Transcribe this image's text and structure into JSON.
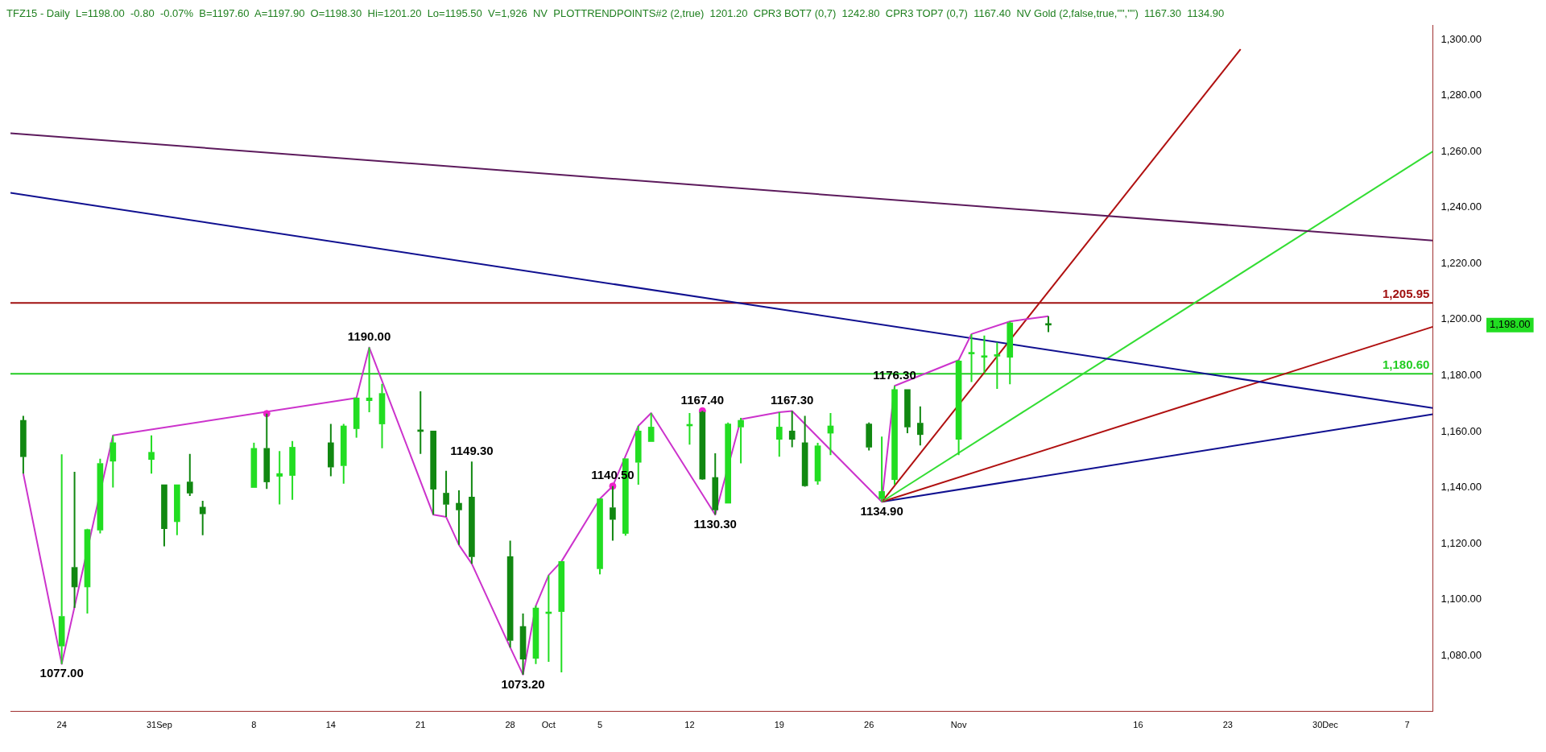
{
  "chart_data": {
    "type": "candlestick",
    "title": "TFZ15 - Daily  L=1198.00  -0.80  -0.07%  B=1197.60  A=1197.90  O=1198.30  Hi=1201.20  Lo=1195.50  V=1,926  NV  PLOTTRENDPOINTS#2 (2,true)  1201.20  CPR3 BOT7 (0,7)  1242.80  CPR3 TOP7 (0,7)  1167.40  NV Gold (2,false,true,\"\",\"\")  1167.30  1134.90",
    "xlim": [
      "--08-20",
      "--12-09"
    ],
    "xticks": [
      {
        "value": "--08-24",
        "label": "24"
      },
      {
        "value": "--08-31",
        "label": "31"
      },
      {
        "value": "--09-01",
        "label": "Sep"
      },
      {
        "value": "--09-08",
        "label": "8"
      },
      {
        "value": "--09-14",
        "label": "14"
      },
      {
        "value": "--09-21",
        "label": "21"
      },
      {
        "value": "--09-28",
        "label": "28"
      },
      {
        "value": "--10-01",
        "label": "Oct"
      },
      {
        "value": "--10-05",
        "label": "5"
      },
      {
        "value": "--10-12",
        "label": "12"
      },
      {
        "value": "--10-19",
        "label": "19"
      },
      {
        "value": "--10-26",
        "label": "26"
      },
      {
        "value": "--11-02",
        "label": "Nov"
      },
      {
        "value": "--11-16",
        "label": "16"
      },
      {
        "value": "--11-23",
        "label": "23"
      },
      {
        "value": "--11-30",
        "label": "30"
      },
      {
        "value": "--12-01",
        "label": "Dec"
      },
      {
        "value": "--12-07",
        "label": "7"
      }
    ],
    "ylim": [
      1060,
      1305
    ],
    "yticks": [
      {
        "value": 1080,
        "label": "1,080.00"
      },
      {
        "value": 1100,
        "label": "1,100.00"
      },
      {
        "value": 1120,
        "label": "1,120.00"
      },
      {
        "value": 1140,
        "label": "1,140.00"
      },
      {
        "value": 1160,
        "label": "1,160.00"
      },
      {
        "value": 1180,
        "label": "1,180.00"
      },
      {
        "value": 1200,
        "label": "1,200.00"
      },
      {
        "value": 1220,
        "label": "1,220.00"
      },
      {
        "value": 1240,
        "label": "1,240.00"
      },
      {
        "value": 1260,
        "label": "1,260.00"
      },
      {
        "value": 1280,
        "label": "1,280.00"
      },
      {
        "value": 1300,
        "label": "1,300.00"
      }
    ],
    "series": [
      {
        "color": "#22dd22",
        "colors": [
          "#118811",
          "#22dd22",
          "#118811",
          "#22dd22",
          "#22dd22",
          "#22dd22",
          "#22dd22",
          "#118811",
          "#22dd22",
          "#118811",
          "#118811",
          "#22dd22",
          "#118811",
          "#22dd22",
          "#22dd22",
          "#118811",
          "#22dd22",
          "#22dd22",
          "#22dd22",
          "#22dd22",
          "#118811",
          "#118811",
          "#118811",
          "#118811",
          "#118811",
          "#118811",
          "#118811",
          "#22dd22",
          "#22dd22",
          "#22dd22",
          "#22dd22",
          "#118811",
          "#22dd22",
          "#22dd22",
          "#22dd22",
          "#22dd22",
          "#118811",
          "#118811",
          "#22dd22",
          "#22dd22",
          "#22dd22",
          "#118811",
          "#118811",
          "#22dd22",
          "#22dd22",
          "#118811",
          "#22dd22",
          "#22dd22",
          "#118811",
          "#118811",
          "#22dd22",
          "#22dd22",
          "#22dd22",
          "#22dd22",
          "#22dd22",
          "#118811"
        ],
        "x": [
          "--08-21",
          "--08-24",
          "--08-25",
          "--08-26",
          "--08-27",
          "--08-28",
          "--08-31",
          "--09-01",
          "--09-02",
          "--09-03",
          "--09-04",
          "--09-08",
          "--09-09",
          "--09-10",
          "--09-11",
          "--09-14",
          "--09-15",
          "--09-16",
          "--09-17",
          "--09-18",
          "--09-21",
          "--09-22",
          "--09-23",
          "--09-24",
          "--09-25",
          "--09-28",
          "--09-29",
          "--09-30",
          "--10-01",
          "--10-02",
          "--10-05",
          "--10-06",
          "--10-07",
          "--10-08",
          "--10-09",
          "--10-12",
          "--10-13",
          "--10-14",
          "--10-15",
          "--10-16",
          "--10-19",
          "--10-20",
          "--10-21",
          "--10-22",
          "--10-23",
          "--10-26",
          "--10-27",
          "--10-28",
          "--10-29",
          "--10-30",
          "--11-02",
          "--11-03",
          "--11-04",
          "--11-05",
          "--11-06",
          "--11-09"
        ],
        "ohlc": [
          [
            1164,
            1165.6,
            1145,
            1151
          ],
          [
            1083.4,
            1151.9,
            1077,
            1094
          ],
          [
            1111.5,
            1145.6,
            1097,
            1104.5
          ],
          [
            1104.5,
            1125.3,
            1095,
            1125
          ],
          [
            1124.8,
            1150.3,
            1123.6,
            1148.6
          ],
          [
            1149.4,
            1158.6,
            1140,
            1156
          ],
          [
            1150,
            1158.6,
            1145,
            1152.6
          ],
          [
            1141,
            1141,
            1119,
            1125.3
          ],
          [
            1127.8,
            1141,
            1123,
            1141
          ],
          [
            1142,
            1152,
            1137,
            1138
          ],
          [
            1133,
            1135.3,
            1123,
            1130.6
          ],
          [
            1140,
            1156,
            1140,
            1154
          ],
          [
            1154,
            1166.4,
            1139.5,
            1142
          ],
          [
            1144,
            1153,
            1134,
            1145
          ],
          [
            1144.3,
            1156.6,
            1135.6,
            1154.4
          ],
          [
            1156,
            1162.7,
            1144,
            1147.3
          ],
          [
            1147.8,
            1162.7,
            1141.4,
            1162
          ],
          [
            1161,
            1172,
            1157.8,
            1172
          ],
          [
            1171,
            1190,
            1166.9,
            1172
          ],
          [
            1162.7,
            1177,
            1154,
            1173.6
          ],
          [
            1160.6,
            1174.4,
            1152,
            1160
          ],
          [
            1160.2,
            1160.2,
            1130.3,
            1139.4
          ],
          [
            1138,
            1146,
            1129.5,
            1134
          ],
          [
            1134.4,
            1139,
            1119.5,
            1132
          ],
          [
            1136.6,
            1149.3,
            1112.8,
            1115.3
          ],
          [
            1115.3,
            1121,
            1082.9,
            1085.4
          ],
          [
            1090.4,
            1095,
            1073.2,
            1078.7
          ],
          [
            1079,
            1097.8,
            1077,
            1097
          ],
          [
            1095,
            1108.7,
            1077.8,
            1095.3
          ],
          [
            1095.7,
            1113.6,
            1074,
            1113.6
          ],
          [
            1111,
            1136,
            1109,
            1136
          ],
          [
            1132.8,
            1140.5,
            1121,
            1128.6
          ],
          [
            1123.6,
            1150.3,
            1122.8,
            1150.3
          ],
          [
            1149,
            1162,
            1141,
            1160.2
          ],
          [
            1156.4,
            1166.6,
            1156.4,
            1161.6
          ],
          [
            1162,
            1166.6,
            1155.3,
            1162
          ],
          [
            1166.9,
            1167.4,
            1142.8,
            1143
          ],
          [
            1143.6,
            1152.2,
            1130.3,
            1132
          ],
          [
            1134.4,
            1163.2,
            1134.4,
            1162.7
          ],
          [
            1161.6,
            1164.9,
            1148.6,
            1164
          ],
          [
            1157.2,
            1166.9,
            1151,
            1161.6
          ],
          [
            1160.2,
            1167.3,
            1154.4,
            1157.2
          ],
          [
            1156,
            1165.6,
            1140.3,
            1140.6
          ],
          [
            1142.3,
            1156,
            1141,
            1154.9
          ],
          [
            1159.4,
            1166.6,
            1151.6,
            1162
          ],
          [
            1162.7,
            1163.2,
            1153.2,
            1154.4
          ],
          [
            1136,
            1158.2,
            1134.9,
            1138.6
          ],
          [
            1142.8,
            1176.3,
            1141,
            1175
          ],
          [
            1175,
            1175,
            1159.4,
            1161.6
          ],
          [
            1163,
            1169,
            1155,
            1158.9
          ],
          [
            1157.2,
            1185.5,
            1151.6,
            1185.2
          ],
          [
            1187.7,
            1194.8,
            1177.7,
            1188
          ],
          [
            1186.5,
            1194.3,
            1181,
            1186.5
          ],
          [
            1186.9,
            1191.8,
            1175.2,
            1187.2
          ],
          [
            1186.5,
            1199.3,
            1176.9,
            1198.8
          ],
          [
            1198.3,
            1201.2,
            1195.5,
            1198
          ]
        ]
      },
      {
        "type": "line",
        "color": "#cc33cc",
        "x": [
          "--08-21",
          "--08-24",
          "--08-28",
          "--09-16",
          "--09-17",
          "--09-22",
          "--09-23",
          "--09-24",
          "--09-25",
          "--09-28",
          "--09-29",
          "--09-30",
          "--10-01",
          "--10-02",
          "--10-05",
          "--10-06",
          "--10-08",
          "--10-09",
          "--10-14",
          "--10-16",
          "--10-19",
          "--10-20",
          "--10-27",
          "--10-28",
          "--11-02",
          "--11-03",
          "--11-06",
          "--11-09"
        ],
        "values": [
          1145,
          1077,
          1158.6,
          1172,
          1190,
          1130.3,
          1129.5,
          1119.5,
          1112.8,
          1082.9,
          1073.2,
          1097.8,
          1108.7,
          1113.6,
          1136,
          1140.5,
          1162,
          1166.6,
          1130.3,
          1164.4,
          1166.9,
          1167.3,
          1134.9,
          1176.3,
          1185.5,
          1194.8,
          1199.3,
          1201.2
        ]
      },
      {
        "type": "scatter",
        "color": "#ee22cc",
        "marker": "circle",
        "x": [
          "--09-09",
          "--10-06",
          "--10-13"
        ],
        "values": [
          1166.4,
          1140.5,
          1167.4
        ]
      },
      {
        "type": "line",
        "color": "#5c1a5c",
        "x": [
          "--08-20",
          "--12-09"
        ],
        "values": [
          1266.5,
          1228.2
        ]
      },
      {
        "type": "line",
        "color": "#101090",
        "x": [
          "--08-20",
          "--12-09"
        ],
        "values": [
          1245.2,
          1168.4
        ]
      },
      {
        "type": "line",
        "color": "#b01010",
        "x": [
          "--10-27",
          "--11-24"
        ],
        "values": [
          1134.9,
          1296.5
        ]
      },
      {
        "type": "line",
        "color": "#33dd33",
        "x": [
          "--10-27",
          "--12-09"
        ],
        "values": [
          1134.9,
          1260
        ]
      },
      {
        "type": "line",
        "color": "#b01010",
        "x": [
          "--10-27",
          "--12-09"
        ],
        "values": [
          1134.9,
          1197.4
        ]
      },
      {
        "type": "line",
        "color": "#101090",
        "x": [
          "--10-27",
          "--12-09"
        ],
        "values": [
          1134.9,
          1166.2
        ]
      }
    ],
    "ref_lines": [
      {
        "axis": "y",
        "value": 1205.95,
        "label": "1,205.95",
        "color": "#a01010"
      },
      {
        "axis": "y",
        "value": 1180.6,
        "label": "1,180.60",
        "color": "#22cc22"
      }
    ],
    "annotations": [
      {
        "text": "1077.00",
        "x": "--08-24",
        "y": 1077
      },
      {
        "text": "1190.00",
        "x": "--09-17",
        "y": 1190
      },
      {
        "text": "1149.30",
        "x": "--09-25",
        "y": 1149.3
      },
      {
        "text": "1073.20",
        "x": "--09-29",
        "y": 1073.2
      },
      {
        "text": "1140.50",
        "x": "--10-06",
        "y": 1140.5
      },
      {
        "text": "1167.40",
        "x": "--10-13",
        "y": 1167.4
      },
      {
        "text": "1130.30",
        "x": "--10-14",
        "y": 1130.3
      },
      {
        "text": "1167.30",
        "x": "--10-20",
        "y": 1167.3
      },
      {
        "text": "1134.90",
        "x": "--10-27",
        "y": 1134.9
      },
      {
        "text": "1176.30",
        "x": "--10-28",
        "y": 1176.3
      },
      "1,198.00"
    ]
  }
}
